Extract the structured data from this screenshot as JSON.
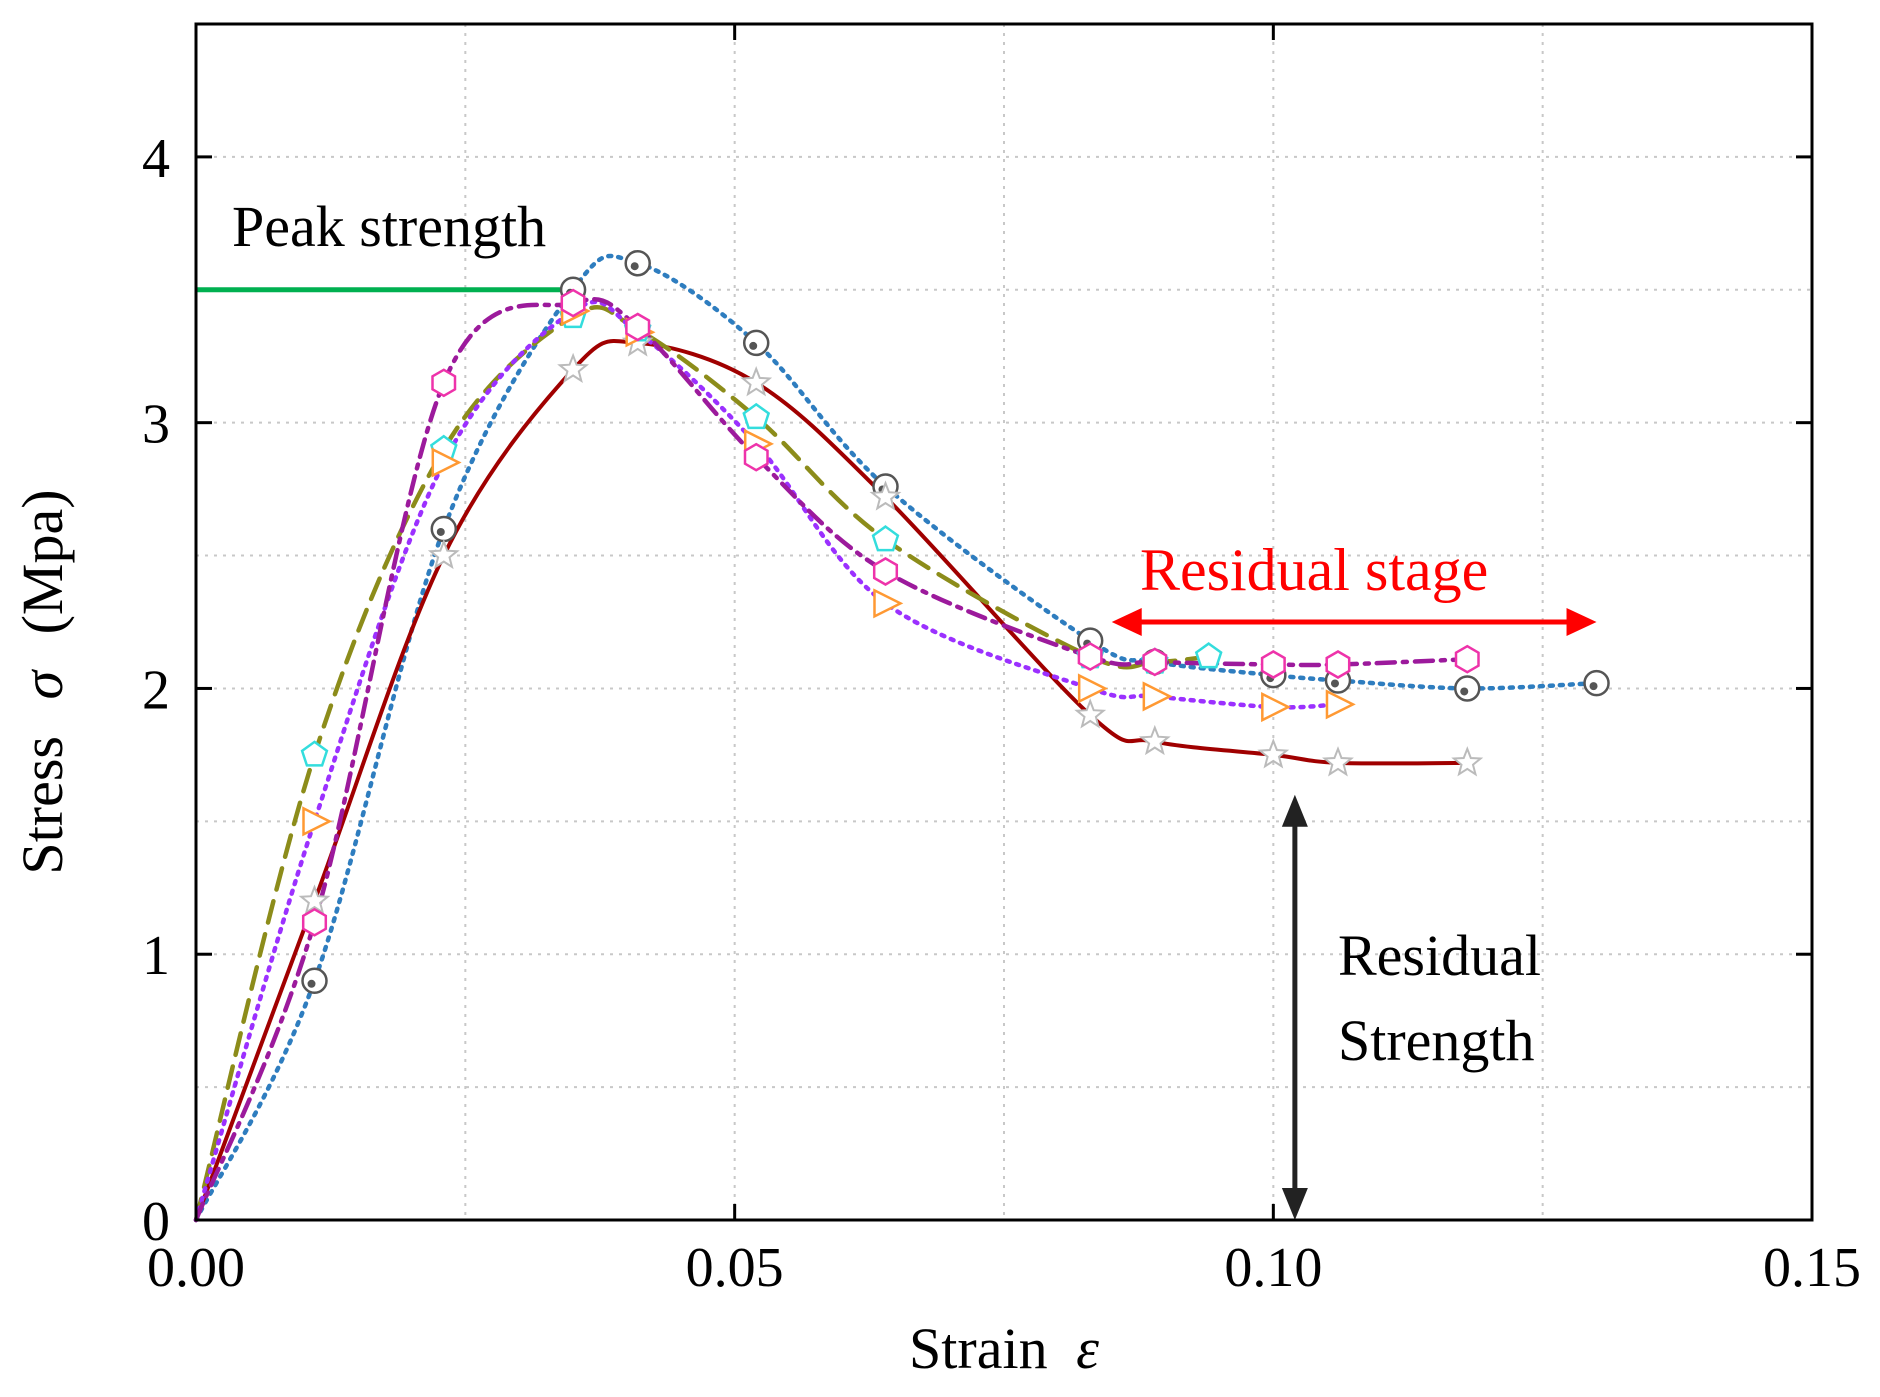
{
  "chart_data": {
    "type": "line",
    "title": "",
    "xlabel": "Strain",
    "xlabel_symbol": "ε",
    "ylabel": "Stress",
    "ylabel_symbol": "σ",
    "ylabel_unit": "(Mpa)",
    "xlim": [
      0,
      0.15
    ],
    "ylim": [
      0,
      4.5
    ],
    "x_ticks": [
      0,
      0.05,
      0.1,
      0.15
    ],
    "x_tick_labels": [
      "0.00",
      "0.05",
      "0.10",
      "0.15"
    ],
    "y_ticks": [
      0,
      1,
      2,
      3,
      4
    ],
    "y_tick_labels": [
      "0",
      "1",
      "2",
      "3",
      "4"
    ],
    "grid": true,
    "series": [
      {
        "marker": "circle-dot",
        "line": "dotted",
        "line_color": "#2e7dbf",
        "marker_color": "#555555",
        "x": [
          0,
          0.011,
          0.023,
          0.035,
          0.041,
          0.052,
          0.064,
          0.083,
          0.089,
          0.1,
          0.106,
          0.118,
          0.13
        ],
        "y": [
          0,
          0.9,
          2.6,
          3.5,
          3.6,
          3.3,
          2.76,
          2.18,
          2.1,
          2.05,
          2.03,
          2.0,
          2.02
        ]
      },
      {
        "marker": "star",
        "line": "solid",
        "line_color": "#a00000",
        "marker_color": "#bbbbbb",
        "x": [
          0,
          0.011,
          0.023,
          0.035,
          0.041,
          0.052,
          0.064,
          0.083,
          0.089,
          0.1,
          0.106,
          0.118
        ],
        "y": [
          0,
          1.2,
          2.5,
          3.2,
          3.3,
          3.15,
          2.72,
          1.9,
          1.8,
          1.75,
          1.72,
          1.72
        ]
      },
      {
        "marker": "pentagon",
        "line": "dashed",
        "line_color": "#8c8c1a",
        "marker_color": "#33dddd",
        "x": [
          0,
          0.011,
          0.023,
          0.035,
          0.041,
          0.052,
          0.064,
          0.083,
          0.089,
          0.094
        ],
        "y": [
          0,
          1.75,
          2.9,
          3.4,
          3.35,
          3.02,
          2.56,
          2.12,
          2.1,
          2.12
        ]
      },
      {
        "marker": "triangle-right",
        "line": "dotted",
        "line_color": "#9b30ff",
        "marker_color": "#ff9933",
        "x": [
          0,
          0.011,
          0.023,
          0.035,
          0.041,
          0.052,
          0.064,
          0.083,
          0.089,
          0.1,
          0.106
        ],
        "y": [
          0,
          1.5,
          2.85,
          3.42,
          3.34,
          2.92,
          2.32,
          2.0,
          1.97,
          1.93,
          1.94
        ]
      },
      {
        "marker": "hexagon",
        "line": "dashdot",
        "line_color": "#9c1a9c",
        "marker_color": "#ee33aa",
        "x": [
          0,
          0.011,
          0.023,
          0.035,
          0.041,
          0.052,
          0.064,
          0.083,
          0.089,
          0.1,
          0.106,
          0.118
        ],
        "y": [
          0,
          1.12,
          3.15,
          3.45,
          3.36,
          2.87,
          2.44,
          2.12,
          2.1,
          2.09,
          2.09,
          2.11
        ]
      }
    ],
    "annotations": {
      "peak_label": "Peak strength",
      "peak_level": 3.5,
      "peak_line_color": "#00b050",
      "residual_stage_label": "Residual stage",
      "residual_stage_range": [
        0.085,
        0.13
      ],
      "residual_stage_y": 2.7,
      "residual_stage_color": "#ff0000",
      "residual_strength_label_line1": "Residual",
      "residual_strength_label_line2": "Strength",
      "residual_strength_x": 0.102,
      "residual_strength_range": [
        0,
        1.6
      ],
      "residual_strength_color": "#222222"
    }
  }
}
